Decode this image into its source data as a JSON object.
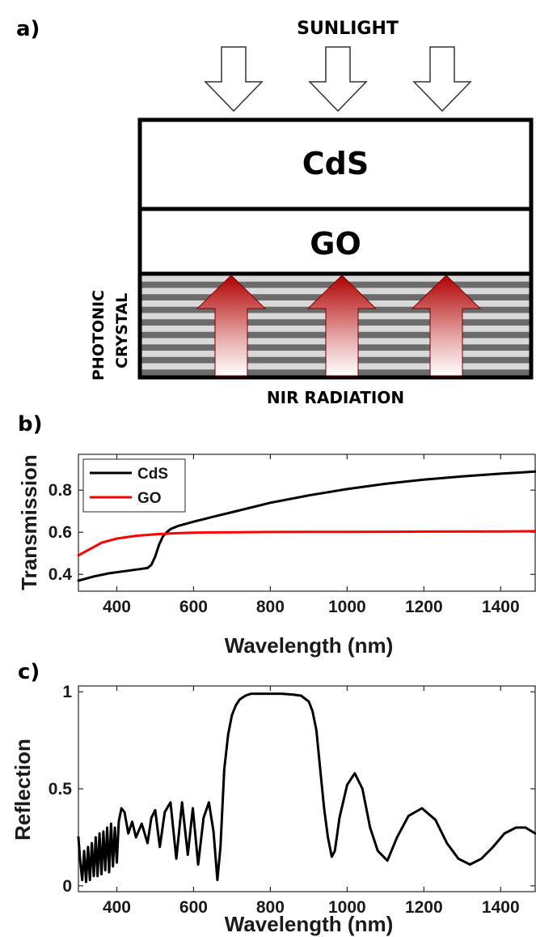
{
  "panels": {
    "a": {
      "label": "a)",
      "top_label": "SUNLIGHT",
      "bottom_label": "NIR RADIATION",
      "layers": [
        "CdS",
        "GO"
      ],
      "side_label_lines": [
        "PHOTONIC",
        "CRYSTAL"
      ]
    },
    "b": {
      "label": "b)"
    },
    "c": {
      "label": "c)"
    }
  },
  "chart_data": [
    {
      "type": "line",
      "ylabel": "Transmission",
      "xlabel": "Wavelength (nm)",
      "xlim": [
        300,
        1490
      ],
      "ylim": [
        0.32,
        0.97
      ],
      "xticks": [
        400,
        600,
        800,
        1000,
        1200,
        1400
      ],
      "yticks": [
        0.4,
        0.6,
        0.8
      ],
      "ytick_labels": [
        "0.4",
        "0.6",
        "0.8"
      ],
      "legend_position": "top-left",
      "grid": false,
      "series": [
        {
          "name": "CdS",
          "color": "#000000",
          "x": [
            300,
            340,
            380,
            420,
            460,
            480,
            490,
            500,
            510,
            520,
            530,
            540,
            560,
            600,
            650,
            700,
            800,
            900,
            1000,
            1100,
            1200,
            1300,
            1400,
            1490
          ],
          "y": [
            0.37,
            0.39,
            0.405,
            0.415,
            0.425,
            0.43,
            0.445,
            0.485,
            0.54,
            0.58,
            0.6,
            0.615,
            0.63,
            0.65,
            0.673,
            0.695,
            0.74,
            0.775,
            0.805,
            0.83,
            0.85,
            0.865,
            0.878,
            0.888
          ]
        },
        {
          "name": "GO",
          "color": "#ff0000",
          "x": [
            300,
            320,
            340,
            360,
            380,
            400,
            450,
            500,
            550,
            600,
            700,
            800,
            1000,
            1200,
            1400,
            1490
          ],
          "y": [
            0.49,
            0.51,
            0.53,
            0.55,
            0.56,
            0.57,
            0.583,
            0.59,
            0.595,
            0.598,
            0.6,
            0.601,
            0.602,
            0.603,
            0.604,
            0.605
          ]
        }
      ]
    },
    {
      "type": "line",
      "ylabel": "Reflection",
      "xlabel": "Wavelength (nm)",
      "xlim": [
        300,
        1490
      ],
      "ylim": [
        -0.03,
        1.03
      ],
      "xticks": [
        400,
        600,
        800,
        1000,
        1200,
        1400
      ],
      "yticks": [
        0,
        0.5,
        1
      ],
      "ytick_labels": [
        "0",
        "0.5",
        "1"
      ],
      "grid": false,
      "series": [
        {
          "color": "#000000",
          "x": [
            300,
            305,
            310,
            315,
            320,
            325,
            330,
            335,
            340,
            345,
            350,
            355,
            360,
            365,
            370,
            375,
            380,
            385,
            390,
            395,
            400,
            405,
            412,
            420,
            430,
            440,
            450,
            465,
            480,
            490,
            500,
            512,
            525,
            540,
            555,
            570,
            585,
            598,
            612,
            626,
            640,
            652,
            662,
            670,
            680,
            690,
            700,
            710,
            720,
            735,
            750,
            770,
            800,
            830,
            860,
            880,
            900,
            910,
            920,
            930,
            940,
            950,
            960,
            968,
            980,
            1000,
            1020,
            1040,
            1060,
            1080,
            1105,
            1130,
            1160,
            1195,
            1230,
            1260,
            1290,
            1320,
            1350,
            1380,
            1410,
            1440,
            1465,
            1490
          ],
          "y": [
            0.25,
            0.12,
            0.03,
            0.18,
            0.02,
            0.2,
            0.03,
            0.22,
            0.05,
            0.25,
            0.05,
            0.27,
            0.06,
            0.28,
            0.08,
            0.3,
            0.07,
            0.32,
            0.1,
            0.3,
            0.12,
            0.33,
            0.4,
            0.38,
            0.27,
            0.33,
            0.25,
            0.32,
            0.22,
            0.35,
            0.39,
            0.2,
            0.38,
            0.43,
            0.14,
            0.43,
            0.16,
            0.4,
            0.11,
            0.35,
            0.43,
            0.28,
            0.03,
            0.2,
            0.6,
            0.78,
            0.88,
            0.93,
            0.96,
            0.98,
            0.99,
            0.99,
            0.99,
            0.99,
            0.985,
            0.98,
            0.95,
            0.9,
            0.8,
            0.6,
            0.4,
            0.25,
            0.15,
            0.18,
            0.35,
            0.52,
            0.58,
            0.5,
            0.3,
            0.18,
            0.13,
            0.25,
            0.36,
            0.4,
            0.34,
            0.22,
            0.14,
            0.11,
            0.14,
            0.2,
            0.27,
            0.3,
            0.3,
            0.27
          ]
        }
      ]
    }
  ]
}
